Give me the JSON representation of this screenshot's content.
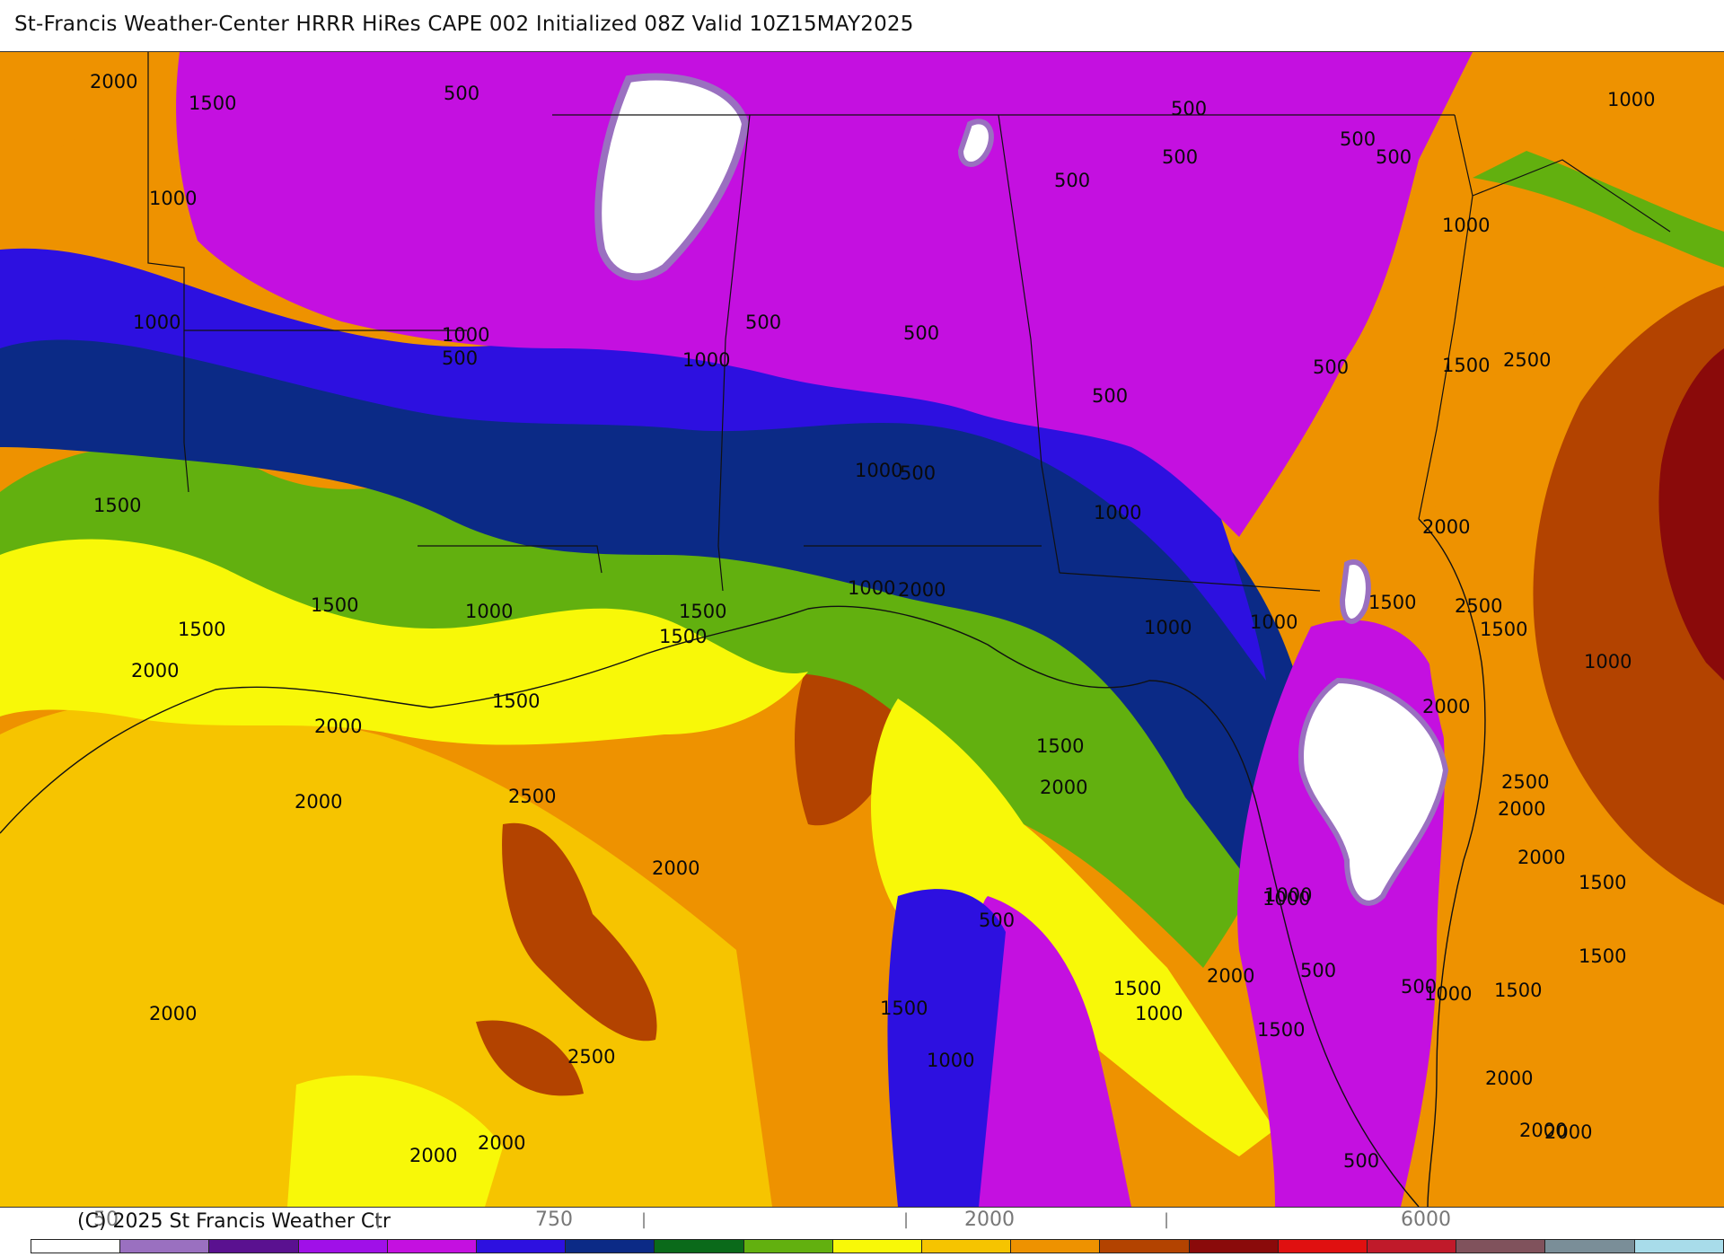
{
  "header": {
    "title": "St-Francis Weather-Center HRRR HiRes CAPE  002 Initialized  08Z Valid 10Z15MAY2025"
  },
  "footer": {
    "copyright": "(C) 2025 St Francis Weather Ctr"
  },
  "colors": {
    "white": "#ffffff",
    "lavender": "#9a70c0",
    "dark_purple": "#5a1190",
    "magenta": "#c410e0",
    "violet": "#a010e8",
    "blue": "#2d10e0",
    "navy": "#0b2a86",
    "dark_green": "#0a6a1a",
    "green": "#62b00f",
    "yellow": "#f8f808",
    "gold": "#f6c400",
    "orange": "#ee9200",
    "rust": "#b34300",
    "dark_red": "#8a0a0a",
    "red": "#e01010",
    "crimson": "#c01a2a",
    "mauve": "#80525c",
    "slate": "#7a8e98",
    "light_cyan": "#a8dcea"
  },
  "legend": {
    "ticks": [
      "50",
      "750",
      "2000",
      "6000"
    ],
    "swatches": [
      "#ffffff",
      "#9a70c0",
      "#5a1190",
      "#a010e8",
      "#c410e0",
      "#2d10e0",
      "#0b2a86",
      "#0a6a1a",
      "#62b00f",
      "#f8f808",
      "#f6c400",
      "#ee9200",
      "#b34300",
      "#8a0a0a",
      "#e01010",
      "#c01a2a",
      "#80525c",
      "#7a8e98",
      "#a8dcea"
    ]
  },
  "contour_labels": [
    "2000",
    "1500",
    "500",
    "500",
    "500",
    "500",
    "500",
    "500",
    "1000",
    "1000",
    "500",
    "1000",
    "500",
    "1000",
    "1000",
    "1000",
    "500",
    "500",
    "500",
    "1500",
    "2500",
    "1500",
    "500",
    "1000",
    "1000",
    "2000",
    "1500",
    "1000",
    "1500",
    "1500",
    "2000",
    "1000",
    "2000",
    "1000",
    "2500",
    "1500",
    "1000",
    "1500",
    "1500",
    "2000",
    "1500",
    "1500",
    "2000",
    "2000",
    "2500",
    "2000",
    "500",
    "1000",
    "2500",
    "1500",
    "2000",
    "2000",
    "1000",
    "1000",
    "500",
    "500",
    "1500",
    "1500",
    "2000",
    "1000",
    "1000",
    "1500",
    "2000",
    "2000",
    "2500",
    "1500",
    "1000",
    "2000",
    "2000",
    "500",
    "1500",
    "2000",
    "2000",
    "2000"
  ]
}
